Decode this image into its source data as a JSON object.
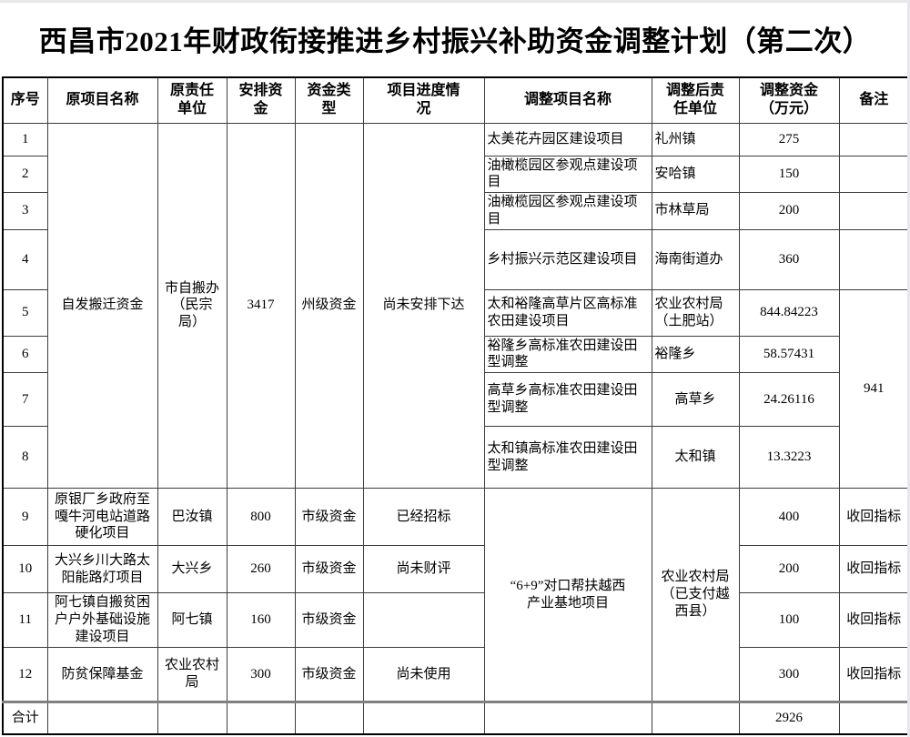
{
  "page": {
    "title": "西昌市2021年财政衔接推进乡村振兴补助资金调整计划（第二次）"
  },
  "table": {
    "headers": [
      "序号",
      "原项目名称",
      "原责任\n单位",
      "安排资\n金",
      "资金类\n型",
      "项目进度情\n况",
      "调整项目名称",
      "调整后责\n任单位",
      "调整资金\n（万元）",
      "备注"
    ],
    "rows": [
      [
        {
          "text": "1"
        },
        {
          "text": "自发搬迁资金",
          "rowspan": 8
        },
        {
          "text": "市自搬办\n（民宗\n局）",
          "rowspan": 8
        },
        {
          "text": "3417",
          "rowspan": 8
        },
        {
          "text": "州级资金",
          "rowspan": 8
        },
        {
          "text": "尚未安排下达",
          "rowspan": 8
        },
        {
          "text": "太美花卉园区建设项目",
          "align": "left"
        },
        {
          "text": "礼州镇",
          "align": "left"
        },
        {
          "text": "275"
        },
        {
          "text": ""
        }
      ],
      [
        {
          "text": "2"
        },
        {
          "text": "油橄榄园区参观点建设项目",
          "align": "left"
        },
        {
          "text": "安哈镇",
          "align": "left"
        },
        {
          "text": "150"
        },
        {
          "text": ""
        }
      ],
      [
        {
          "text": "3"
        },
        {
          "text": "油橄榄园区参观点建设项目",
          "align": "left"
        },
        {
          "text": "市林草局",
          "align": "left"
        },
        {
          "text": "200"
        },
        {
          "text": ""
        }
      ],
      [
        {
          "text": "4"
        },
        {
          "text": "乡村振兴示范区建设项目",
          "align": "left"
        },
        {
          "text": "海南街道办",
          "align": "left"
        },
        {
          "text": "360"
        },
        {
          "text": ""
        }
      ],
      [
        {
          "text": "5"
        },
        {
          "text": "太和裕隆高草片区高标准农田建设项目",
          "align": "left"
        },
        {
          "text": "农业农村局\n（土肥站）",
          "align": "left"
        },
        {
          "text": "844.84223"
        },
        {
          "text": "941",
          "rowspan": 4
        }
      ],
      [
        {
          "text": "6"
        },
        {
          "text": "裕隆乡高标准农田建设田型调整",
          "align": "left"
        },
        {
          "text": "裕隆乡",
          "align": "left"
        },
        {
          "text": "58.57431"
        }
      ],
      [
        {
          "text": "7"
        },
        {
          "text": "高草乡高标准农田建设田型调整",
          "align": "left"
        },
        {
          "text": "高草乡"
        },
        {
          "text": "24.26116"
        }
      ],
      [
        {
          "text": "8"
        },
        {
          "text": "太和镇高标准农田建设田型调整",
          "align": "left"
        },
        {
          "text": "太和镇"
        },
        {
          "text": "13.3223"
        }
      ],
      [
        {
          "text": "9"
        },
        {
          "text": "原银厂乡政府至嘎牛河电站道路硬化项目"
        },
        {
          "text": "巴汝镇"
        },
        {
          "text": "800"
        },
        {
          "text": "市级资金"
        },
        {
          "text": "已经招标"
        },
        {
          "text": "“6+9”对口帮扶越西\n产业基地项目",
          "rowspan": 4
        },
        {
          "text": "农业农村局\n（已支付越\n西县）",
          "rowspan": 4
        },
        {
          "text": "400"
        },
        {
          "text": "收回指标"
        }
      ],
      [
        {
          "text": "10"
        },
        {
          "text": "大兴乡川大路太阳能路灯项目"
        },
        {
          "text": "大兴乡"
        },
        {
          "text": "260"
        },
        {
          "text": "市级资金"
        },
        {
          "text": "尚未财评"
        },
        {
          "text": "200"
        },
        {
          "text": "收回指标"
        }
      ],
      [
        {
          "text": "11"
        },
        {
          "text": "阿七镇自搬贫困户户外基础设施建设项目"
        },
        {
          "text": "阿七镇"
        },
        {
          "text": "160"
        },
        {
          "text": "市级资金"
        },
        {
          "text": ""
        },
        {
          "text": "100"
        },
        {
          "text": "收回指标"
        }
      ],
      [
        {
          "text": "12"
        },
        {
          "text": "防贫保障基金"
        },
        {
          "text": "农业农村局"
        },
        {
          "text": "300"
        },
        {
          "text": "市级资金"
        },
        {
          "text": "尚未使用"
        },
        {
          "text": "300"
        },
        {
          "text": "收回指标"
        }
      ]
    ],
    "footer": [
      {
        "text": "合计"
      },
      {
        "text": ""
      },
      {
        "text": ""
      },
      {
        "text": ""
      },
      {
        "text": ""
      },
      {
        "text": ""
      },
      {
        "text": ""
      },
      {
        "text": ""
      },
      {
        "text": "2926"
      },
      {
        "text": ""
      }
    ]
  }
}
